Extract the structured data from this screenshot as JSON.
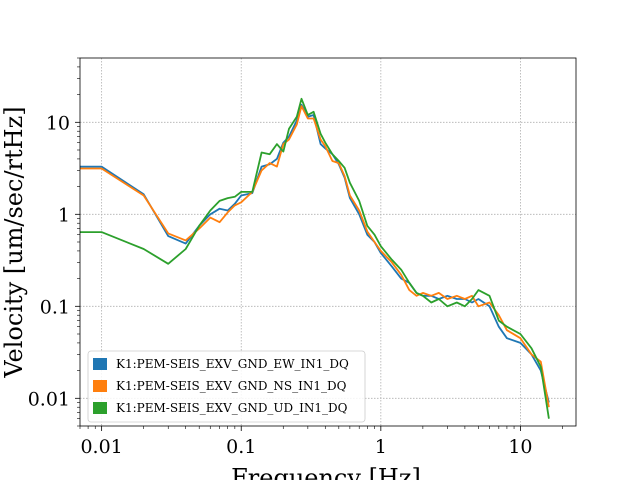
{
  "chart_data": {
    "type": "line",
    "xlabel": "Frequency [Hz]",
    "ylabel": "Velocity [um/sec/rtHz]",
    "xscale": "log",
    "yscale": "log",
    "xlim": [
      0.007,
      25
    ],
    "ylim": [
      0.005,
      50
    ],
    "xticks": [
      0.01,
      0.1,
      1,
      10
    ],
    "xtick_labels": [
      "0.01",
      "0.1",
      "1",
      "10"
    ],
    "yticks": [
      0.01,
      0.1,
      1,
      10
    ],
    "ytick_labels": [
      "0.01",
      "0.1",
      "1",
      "10"
    ],
    "grid": true,
    "legend_position": "lower-left",
    "series": [
      {
        "name": "K1:PEM-SEIS_EXV_GND_EW_IN1_DQ",
        "color": "#1f77b4",
        "points": [
          [
            0.007,
            3.3
          ],
          [
            0.01,
            3.3
          ],
          [
            0.02,
            1.65
          ],
          [
            0.03,
            0.58
          ],
          [
            0.04,
            0.48
          ],
          [
            0.05,
            0.75
          ],
          [
            0.06,
            1.0
          ],
          [
            0.07,
            1.15
          ],
          [
            0.08,
            1.1
          ],
          [
            0.09,
            1.3
          ],
          [
            0.1,
            1.6
          ],
          [
            0.12,
            1.7
          ],
          [
            0.14,
            3.3
          ],
          [
            0.16,
            3.5
          ],
          [
            0.18,
            4.0
          ],
          [
            0.2,
            6.0
          ],
          [
            0.22,
            7.0
          ],
          [
            0.25,
            10.5
          ],
          [
            0.27,
            15.5
          ],
          [
            0.3,
            11.5
          ],
          [
            0.33,
            12.0
          ],
          [
            0.37,
            5.8
          ],
          [
            0.4,
            5.2
          ],
          [
            0.45,
            4.5
          ],
          [
            0.5,
            3.5
          ],
          [
            0.55,
            2.5
          ],
          [
            0.6,
            1.5
          ],
          [
            0.7,
            1.0
          ],
          [
            0.8,
            0.6
          ],
          [
            0.9,
            0.5
          ],
          [
            1.0,
            0.38
          ],
          [
            1.2,
            0.27
          ],
          [
            1.4,
            0.2
          ],
          [
            1.6,
            0.18
          ],
          [
            1.8,
            0.14
          ],
          [
            2.0,
            0.13
          ],
          [
            2.3,
            0.13
          ],
          [
            2.6,
            0.12
          ],
          [
            3.0,
            0.13
          ],
          [
            3.5,
            0.12
          ],
          [
            4.0,
            0.12
          ],
          [
            4.5,
            0.11
          ],
          [
            5.0,
            0.12
          ],
          [
            6.0,
            0.1
          ],
          [
            7.0,
            0.06
          ],
          [
            8.0,
            0.045
          ],
          [
            10.0,
            0.04
          ],
          [
            12.0,
            0.03
          ],
          [
            14.0,
            0.02
          ],
          [
            16.0,
            0.009
          ]
        ]
      },
      {
        "name": "K1:PEM-SEIS_EXV_GND_NS_IN1_DQ",
        "color": "#ff7f0e",
        "points": [
          [
            0.007,
            3.15
          ],
          [
            0.01,
            3.15
          ],
          [
            0.02,
            1.6
          ],
          [
            0.03,
            0.62
          ],
          [
            0.04,
            0.52
          ],
          [
            0.05,
            0.7
          ],
          [
            0.06,
            0.92
          ],
          [
            0.07,
            0.82
          ],
          [
            0.08,
            1.05
          ],
          [
            0.09,
            1.25
          ],
          [
            0.1,
            1.35
          ],
          [
            0.12,
            1.75
          ],
          [
            0.14,
            3.0
          ],
          [
            0.16,
            3.6
          ],
          [
            0.18,
            3.3
          ],
          [
            0.2,
            5.8
          ],
          [
            0.22,
            6.5
          ],
          [
            0.25,
            9.5
          ],
          [
            0.27,
            15.0
          ],
          [
            0.3,
            11.0
          ],
          [
            0.33,
            11.0
          ],
          [
            0.37,
            6.5
          ],
          [
            0.4,
            5.5
          ],
          [
            0.45,
            3.8
          ],
          [
            0.5,
            3.6
          ],
          [
            0.55,
            2.6
          ],
          [
            0.6,
            1.6
          ],
          [
            0.7,
            1.1
          ],
          [
            0.8,
            0.65
          ],
          [
            0.9,
            0.5
          ],
          [
            1.0,
            0.4
          ],
          [
            1.2,
            0.3
          ],
          [
            1.4,
            0.22
          ],
          [
            1.6,
            0.15
          ],
          [
            1.8,
            0.13
          ],
          [
            2.0,
            0.14
          ],
          [
            2.3,
            0.13
          ],
          [
            2.6,
            0.14
          ],
          [
            3.0,
            0.12
          ],
          [
            3.5,
            0.13
          ],
          [
            4.0,
            0.12
          ],
          [
            4.5,
            0.13
          ],
          [
            5.0,
            0.1
          ],
          [
            6.0,
            0.11
          ],
          [
            7.0,
            0.08
          ],
          [
            8.0,
            0.055
          ],
          [
            10.0,
            0.045
          ],
          [
            12.0,
            0.03
          ],
          [
            14.0,
            0.025
          ],
          [
            16.0,
            0.008
          ]
        ]
      },
      {
        "name": "K1:PEM-SEIS_EXV_GND_UD_IN1_DQ",
        "color": "#2ca02c",
        "points": [
          [
            0.007,
            0.64
          ],
          [
            0.01,
            0.64
          ],
          [
            0.02,
            0.42
          ],
          [
            0.03,
            0.29
          ],
          [
            0.04,
            0.42
          ],
          [
            0.05,
            0.75
          ],
          [
            0.06,
            1.1
          ],
          [
            0.07,
            1.4
          ],
          [
            0.08,
            1.5
          ],
          [
            0.09,
            1.55
          ],
          [
            0.1,
            1.75
          ],
          [
            0.12,
            1.75
          ],
          [
            0.14,
            4.7
          ],
          [
            0.16,
            4.5
          ],
          [
            0.18,
            5.8
          ],
          [
            0.2,
            4.8
          ],
          [
            0.22,
            8.5
          ],
          [
            0.25,
            11.5
          ],
          [
            0.27,
            18.0
          ],
          [
            0.3,
            12.0
          ],
          [
            0.33,
            13.0
          ],
          [
            0.37,
            7.5
          ],
          [
            0.4,
            6.0
          ],
          [
            0.45,
            4.5
          ],
          [
            0.5,
            3.8
          ],
          [
            0.55,
            3.2
          ],
          [
            0.6,
            2.2
          ],
          [
            0.7,
            1.4
          ],
          [
            0.8,
            0.75
          ],
          [
            0.9,
            0.6
          ],
          [
            1.0,
            0.45
          ],
          [
            1.2,
            0.32
          ],
          [
            1.4,
            0.25
          ],
          [
            1.6,
            0.18
          ],
          [
            1.8,
            0.14
          ],
          [
            2.0,
            0.13
          ],
          [
            2.3,
            0.11
          ],
          [
            2.6,
            0.12
          ],
          [
            3.0,
            0.1
          ],
          [
            3.5,
            0.11
          ],
          [
            4.0,
            0.1
          ],
          [
            4.5,
            0.12
          ],
          [
            5.0,
            0.15
          ],
          [
            6.0,
            0.13
          ],
          [
            7.0,
            0.07
          ],
          [
            8.0,
            0.06
          ],
          [
            10.0,
            0.05
          ],
          [
            12.0,
            0.035
          ],
          [
            14.0,
            0.022
          ],
          [
            16.0,
            0.006
          ]
        ]
      }
    ]
  }
}
